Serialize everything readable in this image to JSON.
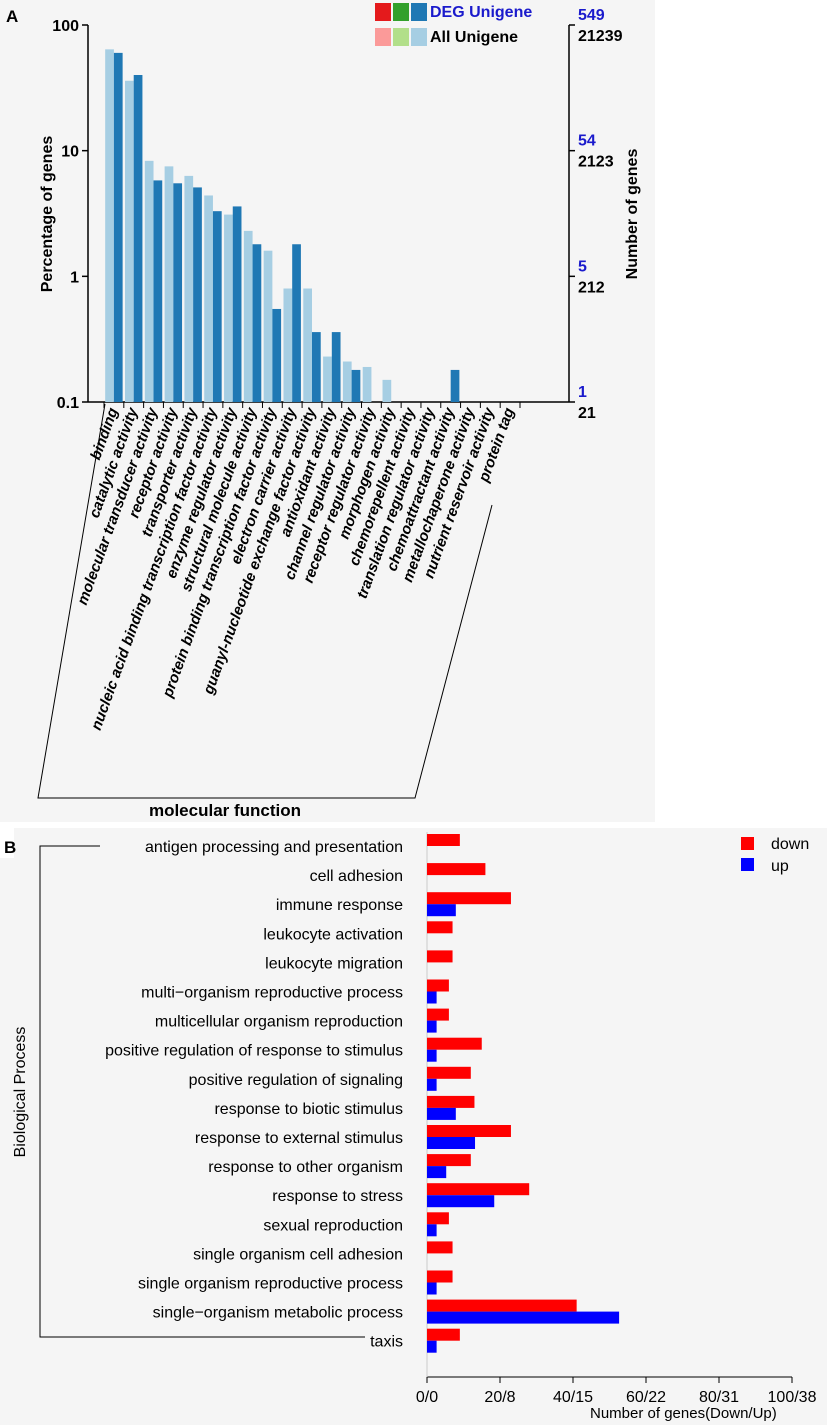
{
  "chart_data": [
    {
      "panel": "A",
      "type": "bar",
      "scale": "log",
      "category_group": "molecular function",
      "categories": [
        "binding",
        "catalytic activity",
        "molecular transducer activity",
        "receptor activity",
        "transporter activity",
        "nucleic acid binding transcription factor activity",
        "enzyme regulator activity",
        "structural molecule activity",
        "protein binding transcription factor activity",
        "electron carrier activity",
        "guanyl-nucleotide exchange factor activity",
        "antioxidant activity",
        "channel regulator activity",
        "receptor regulator activity",
        "morphogen activity",
        "chemorepellent activity",
        "translation regulator activity",
        "chemoattractant activity",
        "metallochaperone activity",
        "nutrient reservoir activity",
        "protein tag"
      ],
      "series": [
        {
          "name": "All Unigene",
          "color": "#a6cee3",
          "values": [
            64,
            36,
            8.3,
            7.5,
            6.3,
            4.4,
            3.1,
            2.3,
            1.6,
            0.8,
            0.8,
            0.23,
            0.21,
            0.19,
            0.15,
            null,
            null,
            null,
            null,
            null,
            null
          ]
        },
        {
          "name": "DEG Unigene",
          "color": "#1f78b4",
          "values": [
            60,
            40,
            5.8,
            5.5,
            5.1,
            3.3,
            3.6,
            1.8,
            0.55,
            1.8,
            0.36,
            0.36,
            0.18,
            null,
            null,
            null,
            null,
            0.18,
            null,
            null,
            null
          ]
        }
      ],
      "legend": {
        "deg_label": "DEG Unigene",
        "all_label": "All Unigene",
        "deg_swatches": [
          "#e41a1c",
          "#33a02c",
          "#1f78b4"
        ],
        "all_swatches": [
          "#fb9a99",
          "#b2df8a",
          "#a6cee3"
        ]
      },
      "ylabel": "Percentage of genes",
      "y2label": "Number of genes",
      "y_ticks": [
        "100",
        "10",
        "1",
        "0.1"
      ],
      "y_tick_values": [
        100,
        10,
        1,
        0.1
      ],
      "ylim": [
        0.1,
        100
      ],
      "right_ticks": [
        {
          "deg": "549",
          "all": "21239"
        },
        {
          "deg": "54",
          "all": "2123"
        },
        {
          "deg": "5",
          "all": "212"
        },
        {
          "deg": "1",
          "all": "21"
        }
      ],
      "panel_label": "A"
    },
    {
      "panel": "B",
      "type": "bar",
      "orientation": "horizontal",
      "categories": [
        "antigen processing and presentation",
        "cell adhesion",
        "immune response",
        "leukocyte activation",
        "leukocyte migration",
        "multi−organism reproductive process",
        "multicellular organism reproduction",
        "positive regulation of response to stimulus",
        "positive regulation of signaling",
        "response to biotic stimulus",
        "response to external stimulus",
        "response to other organism",
        "response to stress",
        "sexual reproduction",
        "single organism cell adhesion",
        "single organism reproductive process",
        "single−organism metabolic process",
        "taxis"
      ],
      "series": [
        {
          "name": "down",
          "color": "#ff0000",
          "values": [
            9,
            16,
            23,
            7,
            7,
            6,
            6,
            15,
            12,
            13,
            23,
            12,
            28,
            6,
            7,
            7,
            41,
            9
          ]
        },
        {
          "name": "up",
          "color": "#0000ff",
          "values": [
            0,
            0,
            3,
            0,
            0,
            1,
            1,
            1,
            1,
            3,
            5,
            2,
            7,
            1,
            0,
            1,
            20,
            1
          ]
        }
      ],
      "down_max": 100,
      "up_max": 38,
      "x_ticks": [
        "0/0",
        "20/8",
        "40/15",
        "60/22",
        "80/31",
        "100/38"
      ],
      "xlabel": "Number of genes(Down/Up)",
      "ylabel": "Biological Process",
      "legend_down": "down",
      "legend_up": "up",
      "panel_label": "B"
    }
  ]
}
